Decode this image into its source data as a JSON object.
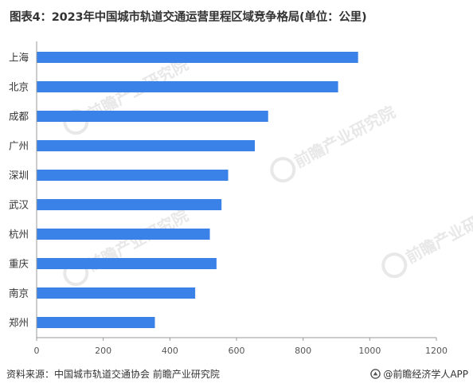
{
  "title": "图表4：2023年中国城市轨道交通运营里程区域竞争格局(单位：公里)",
  "footer": {
    "source": "资料来源：中国城市轨道交通协会 前瞻产业研究院",
    "brand": "@前瞻经济学人APP"
  },
  "watermark": {
    "text": "前瞻产业研究院",
    "color": "#e8e8e8"
  },
  "colors": {
    "bar": "#3b82e8",
    "axis": "#999999",
    "grid": "#eeeeee"
  },
  "chart_data": {
    "type": "bar",
    "orientation": "horizontal",
    "title": "图表4：2023年中国城市轨道交通运营里程区域竞争格局(单位：公里)",
    "unit": "公里",
    "categories": [
      "上海",
      "北京",
      "成都",
      "广州",
      "深圳",
      "武汉",
      "杭州",
      "重庆",
      "南京",
      "郑州"
    ],
    "values": [
      965,
      905,
      695,
      655,
      575,
      555,
      520,
      540,
      476,
      355
    ],
    "xlim": [
      0,
      1200
    ],
    "xticks": [
      0,
      200,
      400,
      600,
      800,
      1000,
      1200
    ],
    "grid": false,
    "legend": "none"
  }
}
